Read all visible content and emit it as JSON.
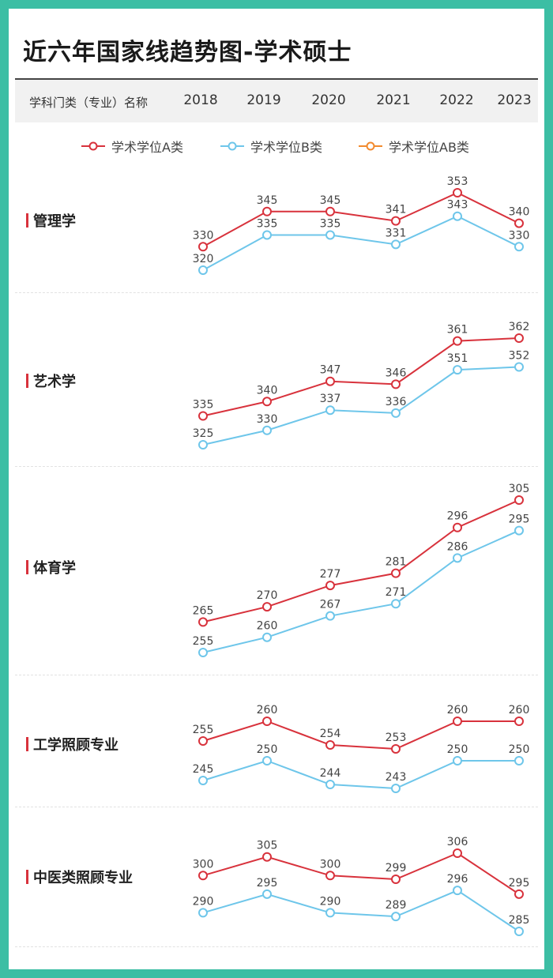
{
  "title": "近六年国家线趋势图-学术硕士",
  "header_label": "学科门类（专业）名称",
  "colors": {
    "a": "#d8323c",
    "b": "#6ec6ea",
    "ab": "#f28a2e",
    "accent_bar": "#d8323c"
  },
  "chart_data": {
    "type": "line",
    "x": [
      "2018",
      "2019",
      "2020",
      "2021",
      "2022",
      "2023"
    ],
    "legend": [
      "学术学位A类",
      "学术学位B类",
      "学术学位AB类"
    ],
    "panels": [
      {
        "category": "管理学",
        "series": [
          {
            "name": "学术学位A类",
            "values": [
              330,
              345,
              345,
              341,
              353,
              340
            ]
          },
          {
            "name": "学术学位B类",
            "values": [
              320,
              335,
              335,
              331,
              343,
              330
            ]
          }
        ]
      },
      {
        "category": "艺术学",
        "series": [
          {
            "name": "学术学位A类",
            "values": [
              335,
              340,
              347,
              346,
              361,
              362
            ]
          },
          {
            "name": "学术学位B类",
            "values": [
              325,
              330,
              337,
              336,
              351,
              352
            ]
          }
        ]
      },
      {
        "category": "体育学",
        "series": [
          {
            "name": "学术学位A类",
            "values": [
              265,
              270,
              277,
              281,
              296,
              305
            ]
          },
          {
            "name": "学术学位B类",
            "values": [
              255,
              260,
              267,
              271,
              286,
              295
            ]
          }
        ]
      },
      {
        "category": "工学照顾专业",
        "series": [
          {
            "name": "学术学位A类",
            "values": [
              255,
              260,
              254,
              253,
              260,
              260
            ]
          },
          {
            "name": "学术学位B类",
            "values": [
              245,
              250,
              244,
              243,
              250,
              250
            ]
          }
        ]
      },
      {
        "category": "中医类照顾专业",
        "series": [
          {
            "name": "学术学位A类",
            "values": [
              300,
              305,
              300,
              299,
              306,
              295
            ]
          },
          {
            "name": "学术学位B类",
            "values": [
              290,
              295,
              290,
              289,
              296,
              285
            ]
          }
        ]
      }
    ]
  }
}
